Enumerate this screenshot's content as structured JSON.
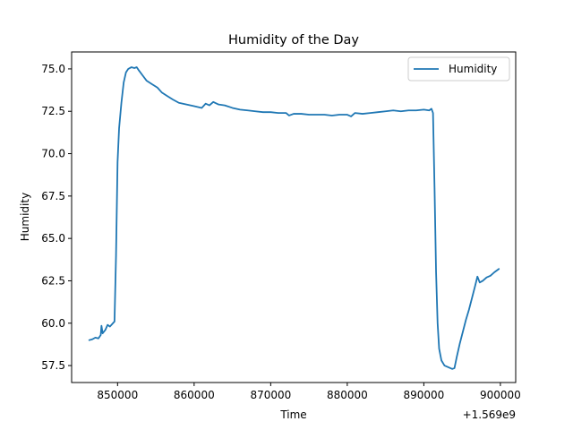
{
  "chart_data": {
    "type": "line",
    "title": "Humidity of the Day",
    "xlabel": "Time",
    "ylabel": "Humidity",
    "x_offset_label": "+1.569e9",
    "xlim": [
      844000,
      902000
    ],
    "ylim": [
      56.5,
      76.0
    ],
    "xticks": [
      850000,
      860000,
      870000,
      880000,
      890000,
      900000
    ],
    "xtick_labels": [
      "850000",
      "860000",
      "870000",
      "880000",
      "890000",
      "900000"
    ],
    "yticks": [
      57.5,
      60.0,
      62.5,
      65.0,
      67.5,
      70.0,
      72.5,
      75.0
    ],
    "ytick_labels": [
      "57.5",
      "60.0",
      "62.5",
      "65.0",
      "67.5",
      "70.0",
      "72.5",
      "75.0"
    ],
    "grid": false,
    "legend_position": "top-right",
    "series": [
      {
        "name": "Humidity",
        "color": "#1f77b4",
        "points": [
          [
            846300,
            59.0
          ],
          [
            846700,
            59.05
          ],
          [
            847100,
            59.15
          ],
          [
            847500,
            59.1
          ],
          [
            847800,
            59.3
          ],
          [
            847900,
            59.85
          ],
          [
            848050,
            59.4
          ],
          [
            848400,
            59.6
          ],
          [
            848700,
            59.9
          ],
          [
            849000,
            59.8
          ],
          [
            849400,
            60.0
          ],
          [
            849600,
            60.1
          ],
          [
            849800,
            64.0
          ],
          [
            850000,
            69.5
          ],
          [
            850200,
            71.5
          ],
          [
            850500,
            73.0
          ],
          [
            850800,
            74.2
          ],
          [
            851100,
            74.8
          ],
          [
            851400,
            75.0
          ],
          [
            851800,
            75.1
          ],
          [
            852200,
            75.05
          ],
          [
            852500,
            75.1
          ],
          [
            852800,
            74.9
          ],
          [
            853300,
            74.6
          ],
          [
            853800,
            74.3
          ],
          [
            854500,
            74.1
          ],
          [
            855200,
            73.9
          ],
          [
            855800,
            73.6
          ],
          [
            856500,
            73.4
          ],
          [
            857200,
            73.2
          ],
          [
            858000,
            73.0
          ],
          [
            859000,
            72.9
          ],
          [
            860000,
            72.8
          ],
          [
            861000,
            72.7
          ],
          [
            861500,
            72.95
          ],
          [
            862000,
            72.85
          ],
          [
            862500,
            73.05
          ],
          [
            863200,
            72.9
          ],
          [
            864000,
            72.85
          ],
          [
            865000,
            72.7
          ],
          [
            866000,
            72.6
          ],
          [
            867000,
            72.55
          ],
          [
            868000,
            72.5
          ],
          [
            869000,
            72.45
          ],
          [
            870000,
            72.45
          ],
          [
            871000,
            72.4
          ],
          [
            872000,
            72.4
          ],
          [
            872400,
            72.25
          ],
          [
            873000,
            72.35
          ],
          [
            874000,
            72.35
          ],
          [
            875000,
            72.3
          ],
          [
            876000,
            72.3
          ],
          [
            877000,
            72.3
          ],
          [
            878000,
            72.25
          ],
          [
            879000,
            72.3
          ],
          [
            880000,
            72.3
          ],
          [
            880500,
            72.2
          ],
          [
            881000,
            72.4
          ],
          [
            882000,
            72.35
          ],
          [
            883000,
            72.4
          ],
          [
            884000,
            72.45
          ],
          [
            885000,
            72.5
          ],
          [
            886000,
            72.55
          ],
          [
            887000,
            72.5
          ],
          [
            888000,
            72.55
          ],
          [
            889000,
            72.55
          ],
          [
            890000,
            72.6
          ],
          [
            890700,
            72.55
          ],
          [
            891000,
            72.65
          ],
          [
            891200,
            72.4
          ],
          [
            891400,
            68.0
          ],
          [
            891600,
            63.0
          ],
          [
            891800,
            60.0
          ],
          [
            892000,
            58.5
          ],
          [
            892300,
            57.8
          ],
          [
            892700,
            57.5
          ],
          [
            893200,
            57.4
          ],
          [
            893700,
            57.3
          ],
          [
            894000,
            57.35
          ],
          [
            894300,
            58.0
          ],
          [
            894700,
            58.8
          ],
          [
            895100,
            59.5
          ],
          [
            895500,
            60.2
          ],
          [
            895900,
            60.8
          ],
          [
            896300,
            61.5
          ],
          [
            896700,
            62.2
          ],
          [
            897000,
            62.75
          ],
          [
            897300,
            62.4
          ],
          [
            897700,
            62.5
          ],
          [
            898200,
            62.7
          ],
          [
            898700,
            62.8
          ],
          [
            899200,
            63.0
          ],
          [
            899800,
            63.2
          ]
        ]
      }
    ]
  }
}
